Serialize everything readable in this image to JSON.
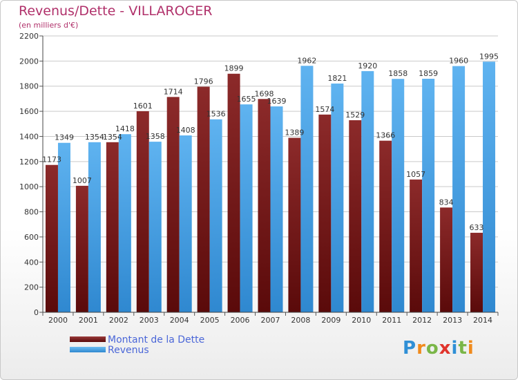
{
  "header": {
    "title": "Revenus/Dette - VILLAROGER",
    "subtitle": "(en milliers d'€)"
  },
  "legend": {
    "placement": "bottom-left",
    "items": [
      {
        "label": "Montant de la Dette",
        "color": "#7a1e1e"
      },
      {
        "label": "Revenus",
        "color": "#4aa3e8"
      }
    ]
  },
  "logo": {
    "text": "Proxiti",
    "colors": [
      "#2f8fd6",
      "#f08a1c",
      "#7ab648",
      "#e0342c",
      "#2f8fd6",
      "#7ab648",
      "#f08a1c"
    ]
  },
  "chart_data": {
    "type": "bar",
    "title": "Revenus/Dette - VILLAROGER",
    "subtitle": "(en milliers d'€)",
    "xlabel": "",
    "ylabel": "",
    "ylim": [
      0,
      2200
    ],
    "yticks": [
      0,
      200,
      400,
      600,
      800,
      1000,
      1200,
      1400,
      1600,
      1800,
      2000,
      2200
    ],
    "grid": true,
    "legend_placement": "bottom-left",
    "categories": [
      "2000",
      "2001",
      "2002",
      "2003",
      "2004",
      "2005",
      "2006",
      "2007",
      "2008",
      "2009",
      "2010",
      "2011",
      "2012",
      "2013",
      "2014"
    ],
    "series": [
      {
        "name": "Montant de la Dette",
        "color": "#7a1e1e",
        "values": [
          1173,
          1007,
          1354,
          1601,
          1714,
          1796,
          1899,
          1698,
          1389,
          1574,
          1529,
          1366,
          1057,
          834,
          633
        ],
        "labels": [
          "1173",
          "1007",
          "1354",
          "1601",
          "1714",
          "1796",
          "1899",
          "1698",
          "1389",
          "1574",
          "1529",
          "1366",
          "1057",
          "834",
          "633"
        ]
      },
      {
        "name": "Revenus",
        "color": "#4aa3e8",
        "values": [
          1349,
          1354,
          1418,
          1358,
          1408,
          1536,
          1655,
          1639,
          1962,
          1821,
          1920,
          1858,
          1859,
          1960,
          1995
        ],
        "labels": [
          "1349",
          "1354",
          "1418",
          "1358",
          "1408",
          "1536",
          "1655",
          "1639",
          "1962",
          "1821",
          "1920",
          "1858",
          "1859",
          "1960",
          "1995"
        ]
      }
    ]
  }
}
